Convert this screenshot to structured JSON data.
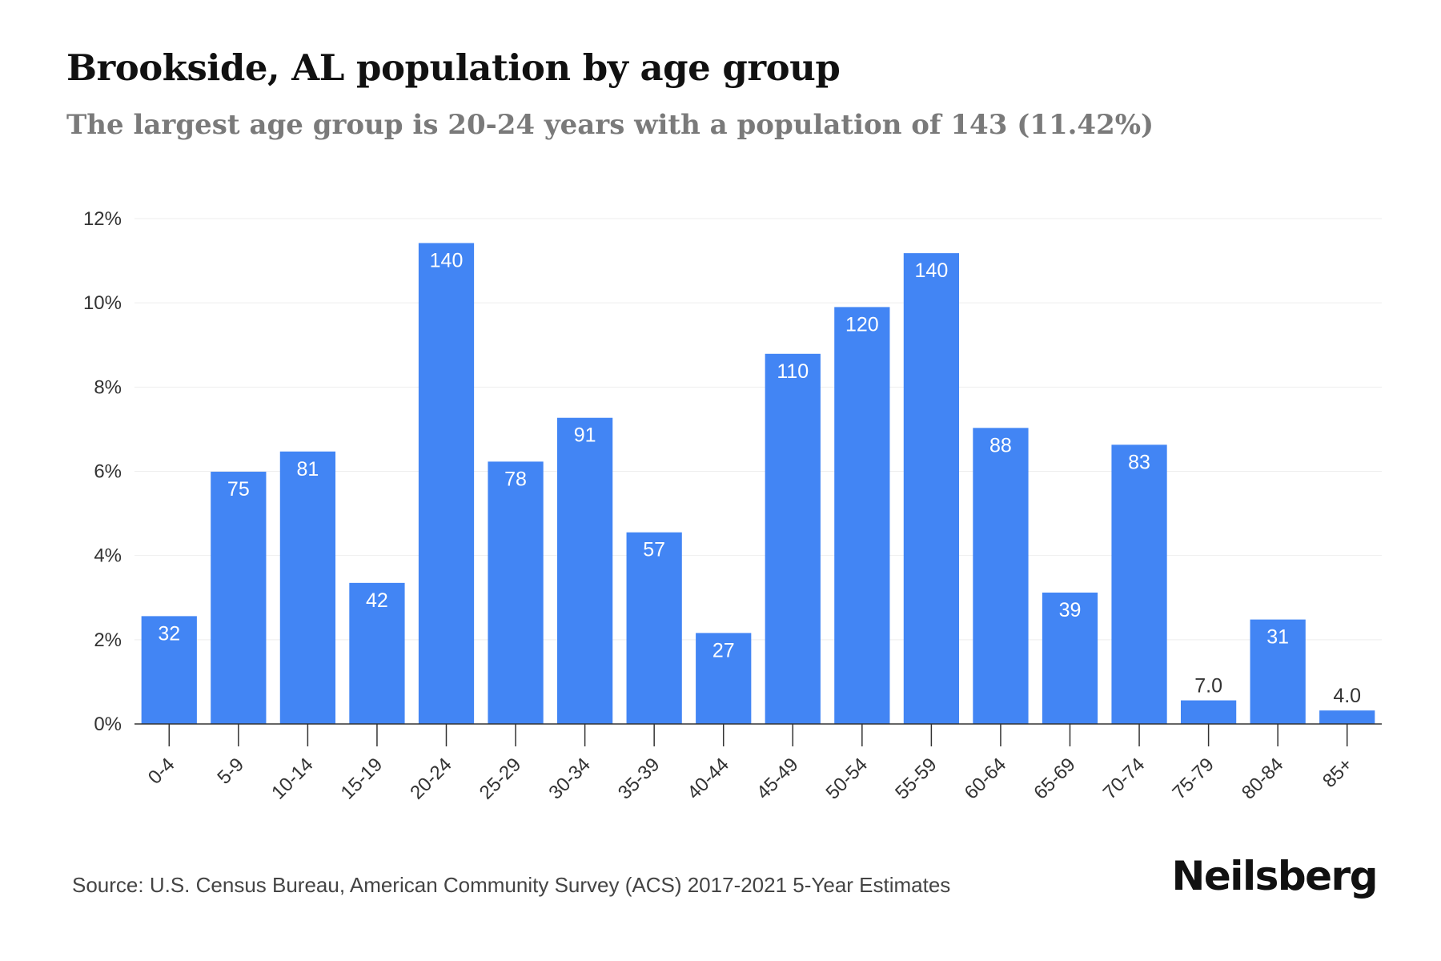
{
  "header": {
    "title": "Brookside, AL population by age group",
    "subtitle": "The largest age group is 20-24 years with a population of 143 (11.42%)"
  },
  "footer": {
    "source": "Source: U.S. Census Bureau, American Community Survey (ACS) 2017-2021 5-Year Estimates",
    "brand": "Neilsberg"
  },
  "colors": {
    "bar": "#4285f4",
    "grid": "#eeeeee",
    "axis": "#333333",
    "label_inside": "#ffffff",
    "label_outside": "#333333"
  },
  "chart_data": {
    "type": "bar",
    "categories": [
      "0-4",
      "5-9",
      "10-14",
      "15-19",
      "20-24",
      "25-29",
      "30-34",
      "35-39",
      "40-44",
      "45-49",
      "50-54",
      "55-59",
      "60-64",
      "65-69",
      "70-74",
      "75-79",
      "80-84",
      "85+"
    ],
    "values": [
      2.56,
      5.99,
      6.47,
      3.35,
      11.42,
      6.23,
      7.27,
      4.55,
      2.16,
      8.79,
      9.9,
      11.18,
      7.03,
      3.12,
      6.63,
      0.56,
      2.48,
      0.32
    ],
    "data_labels": [
      "32",
      "75",
      "81",
      "42",
      "140",
      "78",
      "91",
      "57",
      "27",
      "110",
      "120",
      "140",
      "88",
      "39",
      "83",
      "7.0",
      "31",
      "4.0"
    ],
    "y_ticks": [
      "0%",
      "2%",
      "4%",
      "6%",
      "8%",
      "10%",
      "12%"
    ],
    "y_tick_values": [
      0,
      2,
      4,
      6,
      8,
      10,
      12
    ],
    "ylim": [
      0,
      12
    ],
    "xlabel": "",
    "ylabel": "",
    "grid": true,
    "legend": "none"
  }
}
